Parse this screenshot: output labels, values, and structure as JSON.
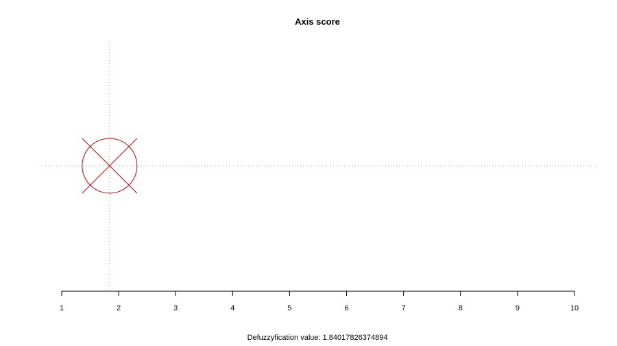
{
  "chart_data": {
    "type": "scatter",
    "title": "Axis score",
    "xlabel": "Defuzzyfication value: 1.84017826374894",
    "ylabel": "",
    "xlim": [
      1,
      10
    ],
    "x_ticks": [
      1,
      2,
      3,
      4,
      5,
      6,
      7,
      8,
      9,
      10
    ],
    "point": {
      "x": 1.84017826374894,
      "marker": "circled-x"
    },
    "reference_lines": {
      "vertical": true,
      "horizontal": true,
      "style": "dotted"
    },
    "grid": false,
    "colors": {
      "marker": "#cc0000",
      "reference_line": "#aaaaaa",
      "axis": "#000000"
    }
  }
}
